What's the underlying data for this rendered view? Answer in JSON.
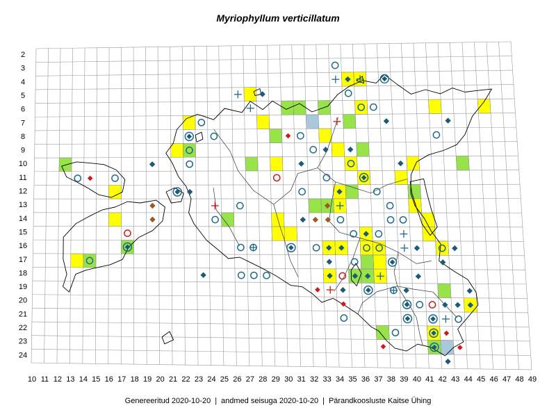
{
  "title": "Myriophyllum verticillatum",
  "footer": {
    "generated": "Genereeritud 2020-10-20",
    "data_as_of": "andmed seisuga 2020-10-20",
    "organization": "Pärandkoosluste Kaitse Ühing"
  },
  "grid": {
    "x_labels": [
      "10",
      "11",
      "12",
      "13",
      "14",
      "15",
      "16",
      "17",
      "18",
      "19",
      "20",
      "21",
      "22",
      "23",
      "24",
      "25",
      "26",
      "27",
      "28",
      "29",
      "30",
      "31",
      "32",
      "33",
      "34",
      "35",
      "36",
      "37",
      "38",
      "39",
      "40",
      "41",
      "42",
      "43",
      "44",
      "45",
      "46",
      "47",
      "48",
      "49"
    ],
    "y_labels": [
      "2",
      "3",
      "4",
      "5",
      "6",
      "7",
      "8",
      "9",
      "10",
      "11",
      "12",
      "13",
      "14",
      "15",
      "16",
      "17",
      "18",
      "19",
      "20",
      "21",
      "22",
      "23",
      "24"
    ]
  },
  "colors": {
    "yellow": "#ffff00",
    "green": "#99e34a",
    "blue_fill": "#a8c8dc",
    "marker_blue": "#1f6a8a",
    "marker_navy": "#1a5a7a",
    "marker_red": "#d01818",
    "marker_brown": "#9a5a28",
    "grid_line": "#9a9a9a",
    "coast_line": "#000000"
  },
  "cells": [
    {
      "c": 35,
      "r": 4,
      "color": "yellow"
    },
    {
      "c": 36,
      "r": 4,
      "color": "yellow"
    },
    {
      "c": 27,
      "r": 5,
      "color": "yellow"
    },
    {
      "c": 42,
      "r": 6,
      "color": "yellow"
    },
    {
      "c": 46,
      "r": 6,
      "color": "yellow"
    },
    {
      "c": 30,
      "r": 6,
      "color": "green"
    },
    {
      "c": 31,
      "r": 6,
      "color": "green"
    },
    {
      "c": 33,
      "r": 6,
      "color": "green"
    },
    {
      "c": 36,
      "r": 6,
      "color": "yellow"
    },
    {
      "c": 32,
      "r": 7,
      "color": "blue"
    },
    {
      "c": 35,
      "r": 7,
      "color": "green"
    },
    {
      "c": 28,
      "r": 7,
      "color": "yellow"
    },
    {
      "c": 22,
      "r": 7,
      "color": "yellow"
    },
    {
      "c": 29,
      "r": 8,
      "color": "green"
    },
    {
      "c": 33,
      "r": 8,
      "color": "yellow"
    },
    {
      "c": 21,
      "r": 9,
      "color": "yellow"
    },
    {
      "c": 22,
      "r": 9,
      "color": "green"
    },
    {
      "c": 34,
      "r": 9,
      "color": "yellow"
    },
    {
      "c": 36,
      "r": 9,
      "color": "green"
    },
    {
      "c": 12,
      "r": 10,
      "color": "green"
    },
    {
      "c": 27,
      "r": 10,
      "color": "green"
    },
    {
      "c": 29,
      "r": 10,
      "color": "yellow"
    },
    {
      "c": 35,
      "r": 10,
      "color": "yellow"
    },
    {
      "c": 40,
      "r": 10,
      "color": "yellow"
    },
    {
      "c": 44,
      "r": 10,
      "color": "green"
    },
    {
      "c": 36,
      "r": 11,
      "color": "yellow"
    },
    {
      "c": 39,
      "r": 11,
      "color": "yellow"
    },
    {
      "c": 16,
      "r": 12,
      "color": "yellow"
    },
    {
      "c": 34,
      "r": 12,
      "color": "yellow"
    },
    {
      "c": 40,
      "r": 12,
      "color": "green"
    },
    {
      "c": 35,
      "r": 12,
      "color": "green"
    },
    {
      "c": 32,
      "r": 13,
      "color": "green"
    },
    {
      "c": 33,
      "r": 13,
      "color": "green"
    },
    {
      "c": 34,
      "r": 13,
      "color": "yellow"
    },
    {
      "c": 40,
      "r": 13,
      "color": "yellow"
    },
    {
      "c": 16,
      "r": 14,
      "color": "yellow"
    },
    {
      "c": 25,
      "r": 14,
      "color": "green"
    },
    {
      "c": 29,
      "r": 14,
      "color": "yellow"
    },
    {
      "c": 41,
      "r": 14,
      "color": "yellow"
    },
    {
      "c": 29,
      "r": 15,
      "color": "yellow"
    },
    {
      "c": 36,
      "r": 15,
      "color": "yellow"
    },
    {
      "c": 30,
      "r": 15,
      "color": "yellow"
    },
    {
      "c": 41,
      "r": 15,
      "color": "yellow"
    },
    {
      "c": 17,
      "r": 16,
      "color": "green"
    },
    {
      "c": 33,
      "r": 16,
      "color": "yellow"
    },
    {
      "c": 34,
      "r": 16,
      "color": "yellow"
    },
    {
      "c": 36,
      "r": 16,
      "color": "yellow"
    },
    {
      "c": 37,
      "r": 16,
      "color": "yellow"
    },
    {
      "c": 42,
      "r": 16,
      "color": "yellow"
    },
    {
      "c": 13,
      "r": 17,
      "color": "yellow"
    },
    {
      "c": 14,
      "r": 17,
      "color": "green"
    },
    {
      "c": 36,
      "r": 17,
      "color": "green"
    },
    {
      "c": 37,
      "r": 17,
      "color": "yellow"
    },
    {
      "c": 33,
      "r": 18,
      "color": "yellow"
    },
    {
      "c": 35,
      "r": 18,
      "color": "green"
    },
    {
      "c": 36,
      "r": 18,
      "color": "green"
    },
    {
      "c": 37,
      "r": 18,
      "color": "yellow"
    },
    {
      "c": 42,
      "r": 19,
      "color": "green"
    },
    {
      "c": 44,
      "r": 20,
      "color": "yellow"
    },
    {
      "c": 37,
      "r": 22,
      "color": "green"
    },
    {
      "c": 41,
      "r": 22,
      "color": "yellow"
    },
    {
      "c": 41,
      "r": 23,
      "color": "green"
    },
    {
      "c": 42,
      "r": 23,
      "color": "blue"
    }
  ],
  "markers": [
    {
      "c": 34,
      "r": 3,
      "t": "circle"
    },
    {
      "c": 35,
      "r": 4,
      "t": "diamond"
    },
    {
      "c": 36,
      "r": 4,
      "t": "plus"
    },
    {
      "c": 38,
      "r": 4,
      "t": "circle_diamond"
    },
    {
      "c": 34,
      "r": 4,
      "t": "plus"
    },
    {
      "c": 26,
      "r": 5,
      "t": "plus"
    },
    {
      "c": 28,
      "r": 5,
      "t": "diamond"
    },
    {
      "c": 35,
      "r": 5,
      "t": "circle"
    },
    {
      "c": 27,
      "r": 6,
      "t": "plus"
    },
    {
      "c": 36,
      "r": 6,
      "t": "circle"
    },
    {
      "c": 37,
      "r": 6,
      "t": "circle"
    },
    {
      "c": 34,
      "r": 7,
      "t": "plus_red"
    },
    {
      "c": 23,
      "r": 7,
      "t": "circle"
    },
    {
      "c": 38,
      "r": 7,
      "t": "diamond"
    },
    {
      "c": 43,
      "r": 7,
      "t": "diamond"
    },
    {
      "c": 22,
      "r": 8,
      "t": "circle_diamond"
    },
    {
      "c": 24,
      "r": 8,
      "t": "circle"
    },
    {
      "c": 30,
      "r": 8,
      "t": "diamond_red"
    },
    {
      "c": 31,
      "r": 8,
      "t": "circle"
    },
    {
      "c": 42,
      "r": 8,
      "t": "circle"
    },
    {
      "c": 22,
      "r": 9,
      "t": "circle"
    },
    {
      "c": 32,
      "r": 9,
      "t": "circle"
    },
    {
      "c": 33,
      "r": 9,
      "t": "diamond"
    },
    {
      "c": 35,
      "r": 9,
      "t": "diamond"
    },
    {
      "c": 19,
      "r": 10,
      "t": "diamond"
    },
    {
      "c": 22,
      "r": 10,
      "t": "circle"
    },
    {
      "c": 31,
      "r": 10,
      "t": "diamond"
    },
    {
      "c": 35,
      "r": 10,
      "t": "circle"
    },
    {
      "c": 39,
      "r": 10,
      "t": "diamond"
    },
    {
      "c": 13,
      "r": 11,
      "t": "circle"
    },
    {
      "c": 14,
      "r": 11,
      "t": "diamond_red"
    },
    {
      "c": 16,
      "r": 11,
      "t": "circle"
    },
    {
      "c": 29,
      "r": 11,
      "t": "circle_red"
    },
    {
      "c": 33,
      "r": 11,
      "t": "circle"
    },
    {
      "c": 36,
      "r": 11,
      "t": "circle_diamond"
    },
    {
      "c": 21,
      "r": 12,
      "t": "circle_diamond"
    },
    {
      "c": 22,
      "r": 12,
      "t": "diamond"
    },
    {
      "c": 31,
      "r": 12,
      "t": "circle"
    },
    {
      "c": 34,
      "r": 12,
      "t": "diamond"
    },
    {
      "c": 37,
      "r": 12,
      "t": "circle"
    },
    {
      "c": 19,
      "r": 13,
      "t": "diamond_brown"
    },
    {
      "c": 24,
      "r": 13,
      "t": "plus_red"
    },
    {
      "c": 26,
      "r": 13,
      "t": "circle"
    },
    {
      "c": 33,
      "r": 13,
      "t": "diamond_brown"
    },
    {
      "c": 34,
      "r": 13,
      "t": "plus"
    },
    {
      "c": 38,
      "r": 13,
      "t": "circle"
    },
    {
      "c": 19,
      "r": 14,
      "t": "diamond_brown"
    },
    {
      "c": 24,
      "r": 14,
      "t": "circle"
    },
    {
      "c": 31,
      "r": 14,
      "t": "diamond"
    },
    {
      "c": 32,
      "r": 14,
      "t": "diamond_brown"
    },
    {
      "c": 33,
      "r": 14,
      "t": "diamond_brown"
    },
    {
      "c": 34,
      "r": 14,
      "t": "circle"
    },
    {
      "c": 38,
      "r": 14,
      "t": "circle"
    },
    {
      "c": 39,
      "r": 14,
      "t": "circle"
    },
    {
      "c": 17,
      "r": 15,
      "t": "circle_red"
    },
    {
      "c": 35,
      "r": 15,
      "t": "circle"
    },
    {
      "c": 36,
      "r": 15,
      "t": "diamond"
    },
    {
      "c": 37,
      "r": 15,
      "t": "circle"
    },
    {
      "c": 39,
      "r": 15,
      "t": "plus"
    },
    {
      "c": 17,
      "r": 16,
      "t": "circle_diamond"
    },
    {
      "c": 26,
      "r": 16,
      "t": "circle"
    },
    {
      "c": 27,
      "r": 16,
      "t": "circle_plus"
    },
    {
      "c": 30,
      "r": 16,
      "t": "circle_diamond"
    },
    {
      "c": 32,
      "r": 16,
      "t": "circle"
    },
    {
      "c": 33,
      "r": 16,
      "t": "diamond"
    },
    {
      "c": 34,
      "r": 16,
      "t": "diamond"
    },
    {
      "c": 36,
      "r": 16,
      "t": "circle"
    },
    {
      "c": 37,
      "r": 16,
      "t": "circle"
    },
    {
      "c": 39,
      "r": 16,
      "t": "plus"
    },
    {
      "c": 40,
      "r": 16,
      "t": "diamond"
    },
    {
      "c": 42,
      "r": 16,
      "t": "circle"
    },
    {
      "c": 43,
      "r": 16,
      "t": "diamond"
    },
    {
      "c": 14,
      "r": 17,
      "t": "circle"
    },
    {
      "c": 33,
      "r": 17,
      "t": "diamond"
    },
    {
      "c": 35,
      "r": 17,
      "t": "circle"
    },
    {
      "c": 38,
      "r": 17,
      "t": "circle_diamond"
    },
    {
      "c": 42,
      "r": 17,
      "t": "diamond"
    },
    {
      "c": 23,
      "r": 18,
      "t": "diamond"
    },
    {
      "c": 26,
      "r": 18,
      "t": "circle"
    },
    {
      "c": 27,
      "r": 18,
      "t": "circle"
    },
    {
      "c": 28,
      "r": 18,
      "t": "circle"
    },
    {
      "c": 33,
      "r": 18,
      "t": "diamond"
    },
    {
      "c": 34,
      "r": 18,
      "t": "circle_red"
    },
    {
      "c": 35,
      "r": 18,
      "t": "diamond"
    },
    {
      "c": 36,
      "r": 18,
      "t": "diamond"
    },
    {
      "c": 37,
      "r": 18,
      "t": "plus"
    },
    {
      "c": 40,
      "r": 18,
      "t": "diamond"
    },
    {
      "c": 32,
      "r": 19,
      "t": "diamond_red"
    },
    {
      "c": 33,
      "r": 19,
      "t": "plus_red"
    },
    {
      "c": 34,
      "r": 19,
      "t": "diamond"
    },
    {
      "c": 36,
      "r": 19,
      "t": "circle_diamond"
    },
    {
      "c": 38,
      "r": 19,
      "t": "circle_plus"
    },
    {
      "c": 39,
      "r": 19,
      "t": "diamond"
    },
    {
      "c": 44,
      "r": 19,
      "t": "diamond"
    },
    {
      "c": 34,
      "r": 20,
      "t": "diamond_red"
    },
    {
      "c": 39,
      "r": 20,
      "t": "circle_diamond"
    },
    {
      "c": 40,
      "r": 20,
      "t": "circle"
    },
    {
      "c": 41,
      "r": 20,
      "t": "circle_red"
    },
    {
      "c": 42,
      "r": 20,
      "t": "diamond"
    },
    {
      "c": 43,
      "r": 20,
      "t": "diamond"
    },
    {
      "c": 44,
      "r": 20,
      "t": "diamond"
    },
    {
      "c": 34,
      "r": 21,
      "t": "circle"
    },
    {
      "c": 39,
      "r": 21,
      "t": "circle_diamond"
    },
    {
      "c": 41,
      "r": 21,
      "t": "circle_diamond"
    },
    {
      "c": 42,
      "r": 21,
      "t": "plus"
    },
    {
      "c": 43,
      "r": 21,
      "t": "circle"
    },
    {
      "c": 38,
      "r": 22,
      "t": "circle"
    },
    {
      "c": 41,
      "r": 22,
      "t": "circle_diamond"
    },
    {
      "c": 42,
      "r": 22,
      "t": "diamond_red"
    },
    {
      "c": 37,
      "r": 23,
      "t": "diamond_red"
    },
    {
      "c": 41,
      "r": 23,
      "t": "circle_diamond"
    },
    {
      "c": 43,
      "r": 23,
      "t": "diamond_red"
    },
    {
      "c": 42,
      "r": 24,
      "t": "diamond"
    }
  ]
}
